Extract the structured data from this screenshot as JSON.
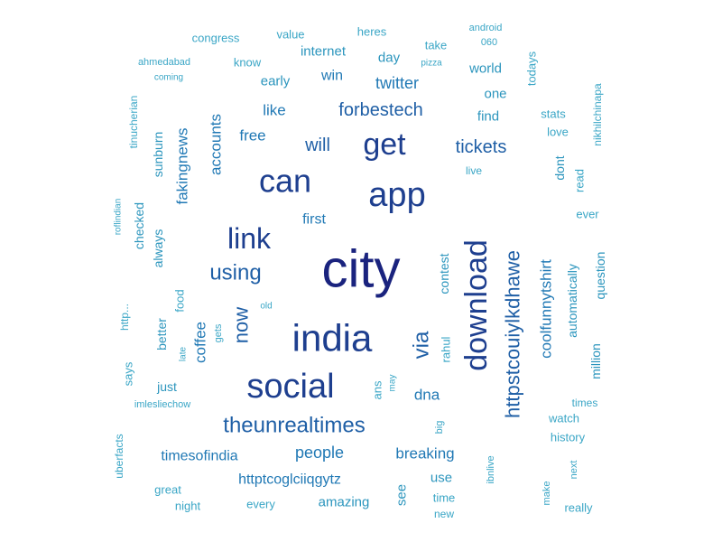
{
  "palette": [
    "#1a237e",
    "#1e3f8f",
    "#1f5fa6",
    "#2179b5",
    "#2b95bd",
    "#3aa6c6"
  ],
  "words": [
    {
      "text": "city",
      "tier": 0,
      "vertical": false
    },
    {
      "text": "india",
      "tier": 1,
      "vertical": false
    },
    {
      "text": "app",
      "tier": 1,
      "vertical": false
    },
    {
      "text": "download",
      "tier": 1,
      "vertical": true
    },
    {
      "text": "social",
      "tier": 1,
      "vertical": false
    },
    {
      "text": "can",
      "tier": 1,
      "vertical": false
    },
    {
      "text": "get",
      "tier": 1,
      "vertical": false
    },
    {
      "text": "link",
      "tier": 1,
      "vertical": false
    },
    {
      "text": "httpstcouiylkdhawe",
      "tier": 2,
      "vertical": true
    },
    {
      "text": "theunrealtimes",
      "tier": 2,
      "vertical": false
    },
    {
      "text": "via",
      "tier": 2,
      "vertical": true
    },
    {
      "text": "using",
      "tier": 2,
      "vertical": false
    },
    {
      "text": "now",
      "tier": 2,
      "vertical": true
    },
    {
      "text": "forbestech",
      "tier": 2,
      "vertical": false
    },
    {
      "text": "tickets",
      "tier": 2,
      "vertical": false
    },
    {
      "text": "will",
      "tier": 2,
      "vertical": false
    },
    {
      "text": "coolfunnytshirt",
      "tier": 3,
      "vertical": true
    },
    {
      "text": "fakingnews",
      "tier": 3,
      "vertical": true
    },
    {
      "text": "accounts",
      "tier": 3,
      "vertical": true
    },
    {
      "text": "people",
      "tier": 3,
      "vertical": false
    },
    {
      "text": "breaking",
      "tier": 3,
      "vertical": false
    },
    {
      "text": "dna",
      "tier": 3,
      "vertical": false
    },
    {
      "text": "twitter",
      "tier": 3,
      "vertical": false
    },
    {
      "text": "coffee",
      "tier": 3,
      "vertical": true
    },
    {
      "text": "free",
      "tier": 3,
      "vertical": false
    },
    {
      "text": "like",
      "tier": 3,
      "vertical": false
    },
    {
      "text": "first",
      "tier": 3,
      "vertical": false
    },
    {
      "text": "win",
      "tier": 3,
      "vertical": false
    },
    {
      "text": "timesofindia",
      "tier": 3,
      "vertical": false
    },
    {
      "text": "httptcoglciiqgytz",
      "tier": 3,
      "vertical": false
    },
    {
      "text": "amazing",
      "tier": 4,
      "vertical": false
    },
    {
      "text": "use",
      "tier": 4,
      "vertical": false
    },
    {
      "text": "see",
      "tier": 4,
      "vertical": true
    },
    {
      "text": "contest",
      "tier": 4,
      "vertical": true
    },
    {
      "text": "automatically",
      "tier": 4,
      "vertical": true
    },
    {
      "text": "sunburn",
      "tier": 4,
      "vertical": true
    },
    {
      "text": "internet",
      "tier": 4,
      "vertical": false
    },
    {
      "text": "world",
      "tier": 4,
      "vertical": false
    },
    {
      "text": "one",
      "tier": 4,
      "vertical": false
    },
    {
      "text": "find",
      "tier": 4,
      "vertical": false
    },
    {
      "text": "day",
      "tier": 4,
      "vertical": false
    },
    {
      "text": "early",
      "tier": 4,
      "vertical": false
    },
    {
      "text": "always",
      "tier": 4,
      "vertical": true
    },
    {
      "text": "checked",
      "tier": 4,
      "vertical": true
    },
    {
      "text": "better",
      "tier": 4,
      "vertical": true
    },
    {
      "text": "just",
      "tier": 4,
      "vertical": false
    },
    {
      "text": "dont",
      "tier": 4,
      "vertical": true
    },
    {
      "text": "million",
      "tier": 4,
      "vertical": true
    },
    {
      "text": "question",
      "tier": 4,
      "vertical": true
    },
    {
      "text": "congress",
      "tier": 5,
      "vertical": false
    },
    {
      "text": "value",
      "tier": 5,
      "vertical": false
    },
    {
      "text": "heres",
      "tier": 5,
      "vertical": false
    },
    {
      "text": "take",
      "tier": 5,
      "vertical": false
    },
    {
      "text": "know",
      "tier": 5,
      "vertical": false
    },
    {
      "text": "todays",
      "tier": 5,
      "vertical": true
    },
    {
      "text": "stats",
      "tier": 5,
      "vertical": false
    },
    {
      "text": "love",
      "tier": 5,
      "vertical": false
    },
    {
      "text": "read",
      "tier": 5,
      "vertical": true
    },
    {
      "text": "ever",
      "tier": 5,
      "vertical": false
    },
    {
      "text": "food",
      "tier": 5,
      "vertical": true
    },
    {
      "text": "watch",
      "tier": 5,
      "vertical": false
    },
    {
      "text": "history",
      "tier": 5,
      "vertical": false
    },
    {
      "text": "time",
      "tier": 5,
      "vertical": false
    },
    {
      "text": "every",
      "tier": 5,
      "vertical": false
    },
    {
      "text": "rahul",
      "tier": 5,
      "vertical": true
    },
    {
      "text": "ans",
      "tier": 5,
      "vertical": true
    },
    {
      "text": "says",
      "tier": 5,
      "vertical": true
    },
    {
      "text": "uberfacts",
      "tier": 5,
      "vertical": true
    },
    {
      "text": "http...",
      "tier": 5,
      "vertical": true
    },
    {
      "text": "tinucherian",
      "tier": 5,
      "vertical": true
    },
    {
      "text": "nikhilchinapa",
      "tier": 5,
      "vertical": true
    },
    {
      "text": "great",
      "tier": 5,
      "vertical": false
    },
    {
      "text": "night",
      "tier": 5,
      "vertical": false
    },
    {
      "text": "really",
      "tier": 5,
      "vertical": false
    },
    {
      "text": "times",
      "tier": 6,
      "vertical": false
    },
    {
      "text": "android",
      "tier": 6,
      "vertical": false
    },
    {
      "text": "060",
      "tier": 6,
      "vertical": false
    },
    {
      "text": "pizza",
      "tier": 6,
      "vertical": false
    },
    {
      "text": "ahmedabad",
      "tier": 6,
      "vertical": false
    },
    {
      "text": "coming",
      "tier": 6,
      "vertical": false
    },
    {
      "text": "live",
      "tier": 6,
      "vertical": false
    },
    {
      "text": "old",
      "tier": 6,
      "vertical": false
    },
    {
      "text": "gets",
      "tier": 6,
      "vertical": true
    },
    {
      "text": "late",
      "tier": 6,
      "vertical": true
    },
    {
      "text": "may",
      "tier": 6,
      "vertical": true
    },
    {
      "text": "big",
      "tier": 6,
      "vertical": true
    },
    {
      "text": "ibnlive",
      "tier": 6,
      "vertical": true
    },
    {
      "text": "make",
      "tier": 6,
      "vertical": true
    },
    {
      "text": "next",
      "tier": 6,
      "vertical": true
    },
    {
      "text": "new",
      "tier": 6,
      "vertical": false
    },
    {
      "text": "imlesliechow",
      "tier": 6,
      "vertical": false
    },
    {
      "text": "roflindian",
      "tier": 6,
      "vertical": true
    }
  ]
}
